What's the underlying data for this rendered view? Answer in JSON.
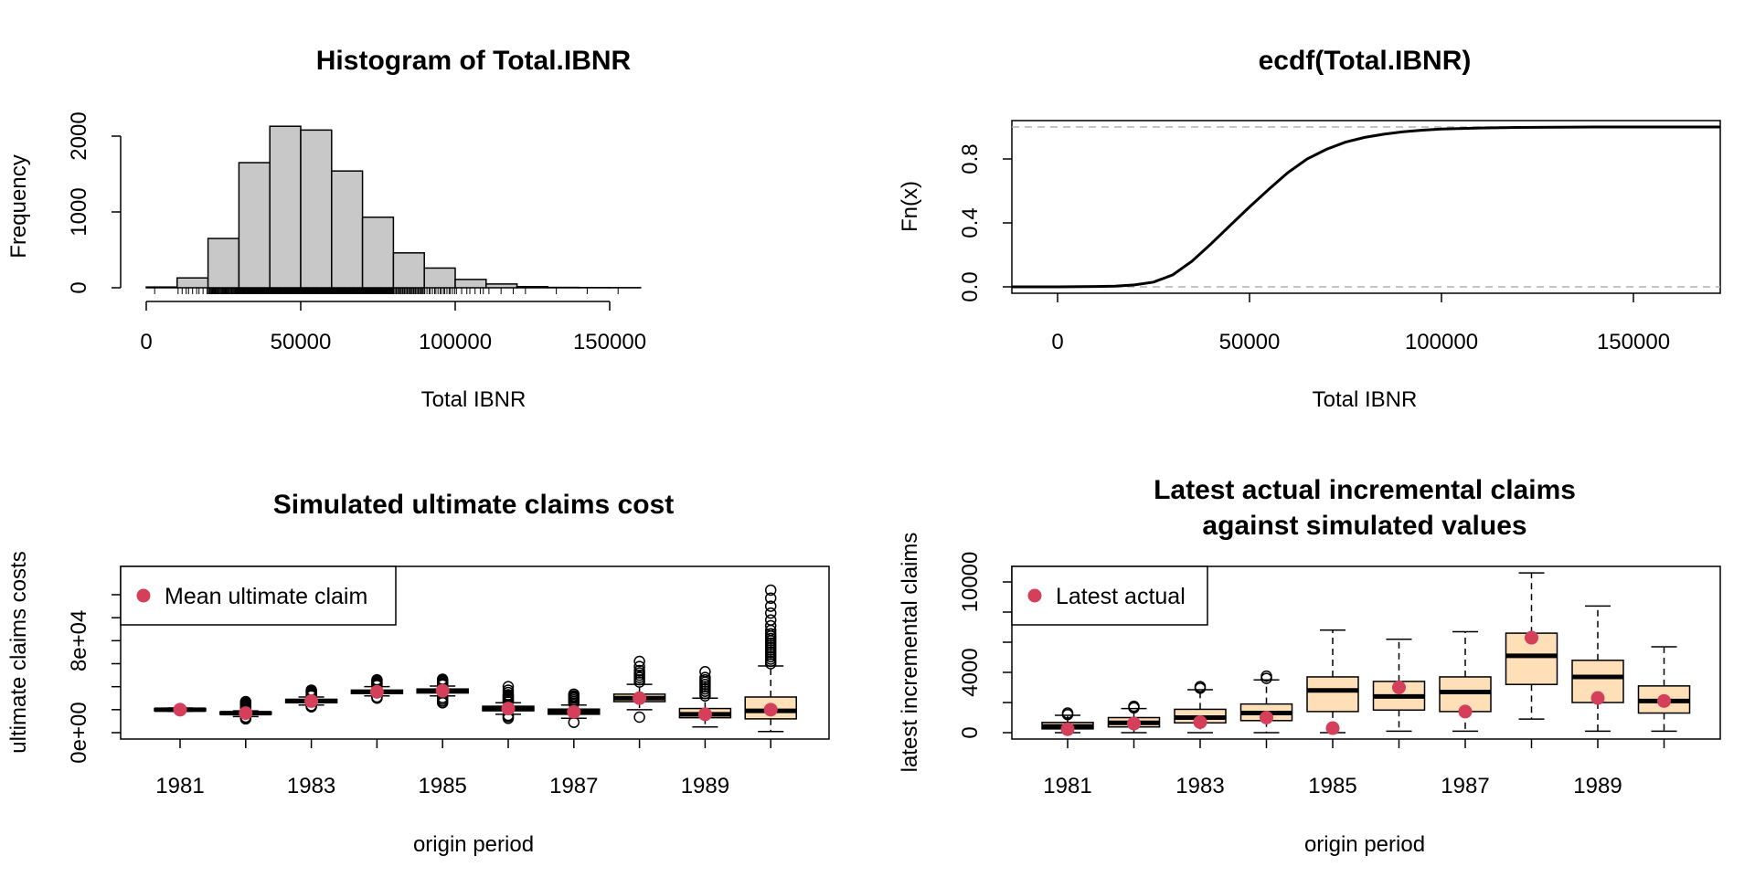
{
  "colors": {
    "hist_fill": "#c8c8c8",
    "box_fill": "#ffdfb8",
    "mean_point": "#d43f5a",
    "ecdf_guide": "#b0b0b0",
    "ink": "#000000"
  },
  "chart_data": [
    {
      "id": "histogram",
      "type": "bar",
      "title": "Histogram of Total.IBNR",
      "xlabel": "Total IBNR",
      "ylabel": "Frequency",
      "xlim": [
        0,
        160000
      ],
      "ylim": [
        0,
        2000
      ],
      "x_ticks": [
        "0",
        "50000",
        "100000",
        "150000"
      ],
      "y_ticks": [
        "0",
        "1000",
        "2000"
      ],
      "bin_width": 10000,
      "bins": [
        {
          "from": 0,
          "to": 10000,
          "count": 10
        },
        {
          "from": 10000,
          "to": 20000,
          "count": 130
        },
        {
          "from": 20000,
          "to": 30000,
          "count": 650
        },
        {
          "from": 30000,
          "to": 40000,
          "count": 1650
        },
        {
          "from": 40000,
          "to": 50000,
          "count": 2130
        },
        {
          "from": 50000,
          "to": 60000,
          "count": 2080
        },
        {
          "from": 60000,
          "to": 70000,
          "count": 1540
        },
        {
          "from": 70000,
          "to": 80000,
          "count": 930
        },
        {
          "from": 80000,
          "to": 90000,
          "count": 460
        },
        {
          "from": 90000,
          "to": 100000,
          "count": 260
        },
        {
          "from": 100000,
          "to": 110000,
          "count": 110
        },
        {
          "from": 110000,
          "to": 120000,
          "count": 50
        },
        {
          "from": 120000,
          "to": 130000,
          "count": 15
        },
        {
          "from": 130000,
          "to": 140000,
          "count": 5
        },
        {
          "from": 140000,
          "to": 150000,
          "count": 3
        },
        {
          "from": 150000,
          "to": 160000,
          "count": 2
        }
      ]
    },
    {
      "id": "ecdf",
      "type": "line",
      "title": "ecdf(Total.IBNR)",
      "xlabel": "Total IBNR",
      "ylabel": "Fn(x)",
      "xlim": [
        0,
        150000
      ],
      "ylim": [
        0,
        1
      ],
      "x_ticks": [
        "0",
        "50000",
        "100000",
        "150000"
      ],
      "y_ticks": [
        "0.0",
        "0.4",
        "0.8"
      ],
      "guides": [
        0,
        1
      ],
      "points": [
        [
          -12000,
          0
        ],
        [
          0,
          0
        ],
        [
          10000,
          0.002
        ],
        [
          15000,
          0.004
        ],
        [
          20000,
          0.012
        ],
        [
          25000,
          0.03
        ],
        [
          30000,
          0.075
        ],
        [
          35000,
          0.16
        ],
        [
          40000,
          0.27
        ],
        [
          45000,
          0.385
        ],
        [
          50000,
          0.5
        ],
        [
          55000,
          0.61
        ],
        [
          60000,
          0.715
        ],
        [
          65000,
          0.8
        ],
        [
          70000,
          0.86
        ],
        [
          75000,
          0.905
        ],
        [
          80000,
          0.935
        ],
        [
          85000,
          0.955
        ],
        [
          90000,
          0.97
        ],
        [
          95000,
          0.98
        ],
        [
          100000,
          0.987
        ],
        [
          110000,
          0.994
        ],
        [
          120000,
          0.997
        ],
        [
          130000,
          0.999
        ],
        [
          140000,
          1.0
        ],
        [
          175000,
          1.0
        ]
      ]
    },
    {
      "id": "ultimate",
      "type": "box",
      "title": "Simulated ultimate claims cost",
      "xlabel": "origin period",
      "ylabel": "ultimate claims costs",
      "categories": [
        "1981",
        "1982",
        "1983",
        "1984",
        "1985",
        "1986",
        "1987",
        "1988",
        "1989",
        "1990"
      ],
      "x_ticks": [
        "1981",
        "1983",
        "1985",
        "1987",
        "1989"
      ],
      "y_ticks": [
        "0e+00",
        "8e+04"
      ],
      "ylim": [
        0,
        130000
      ],
      "legend": {
        "label": "Mean ultimate claim",
        "position": "top-left"
      },
      "boxes": [
        {
          "q1": 19000,
          "median": 20000,
          "q3": 21000,
          "lo": 18500,
          "hi": 21500,
          "outliers": [],
          "mean": 20000
        },
        {
          "q1": 16000,
          "median": 17000,
          "q3": 18000,
          "lo": 14000,
          "hi": 19000,
          "outliers": [
            12000,
            13000,
            13500,
            19500,
            20500,
            21500,
            22500,
            23500,
            24500,
            25500,
            26500,
            27000
          ],
          "mean": 17000
        },
        {
          "q1": 26000,
          "median": 27500,
          "q3": 29000,
          "lo": 24000,
          "hi": 31000,
          "outliers": [
            22500,
            23500,
            32000,
            33000,
            34000,
            35000,
            36000,
            37000
          ],
          "mean": 27500
        },
        {
          "q1": 34000,
          "median": 35500,
          "q3": 37000,
          "lo": 32000,
          "hi": 40000,
          "outliers": [
            30000,
            31000,
            41000,
            42000,
            43000,
            44000,
            45000,
            46000
          ],
          "mean": 35500
        },
        {
          "q1": 34500,
          "median": 36500,
          "q3": 38000,
          "lo": 32000,
          "hi": 40500,
          "outliers": [
            26000,
            27500,
            29000,
            30500,
            41500,
            42500,
            43500,
            44500,
            45500,
            46500
          ],
          "mean": 36500
        },
        {
          "q1": 19000,
          "median": 21000,
          "q3": 23000,
          "lo": 16000,
          "hi": 26000,
          "outliers": [
            12500,
            14000,
            15000,
            27000,
            28000,
            29000,
            30000,
            31000,
            32000,
            33000,
            35000,
            37000,
            40000
          ],
          "mean": 21000
        },
        {
          "q1": 16000,
          "median": 18000,
          "q3": 20500,
          "lo": 12500,
          "hi": 24000,
          "outliers": [
            9000,
            25500,
            27000,
            28500,
            30000,
            31000,
            32000,
            33500
          ],
          "mean": 18000
        },
        {
          "q1": 27000,
          "median": 30000,
          "q3": 33500,
          "lo": 20000,
          "hi": 42000,
          "outliers": [
            13500,
            44000,
            46000,
            48000,
            50000,
            52000,
            54000,
            57500,
            62000
          ],
          "mean": 30000
        },
        {
          "q1": 13000,
          "median": 16000,
          "q3": 21000,
          "lo": 5000,
          "hi": 30000,
          "outliers": [
            32000,
            34000,
            36000,
            38000,
            40000,
            42000,
            44000,
            46000,
            48000,
            53000
          ],
          "mean": 16000
        },
        {
          "q1": 12000,
          "median": 19000,
          "q3": 31000,
          "lo": 1000,
          "hi": 58000,
          "outliers": [
            60000,
            62000,
            64000,
            66000,
            68000,
            70000,
            72000,
            74000,
            76000,
            78000,
            80000,
            82000,
            84000,
            86000,
            89000,
            93000,
            98000,
            104000,
            110000,
            117000,
            124000
          ],
          "mean": 20000
        }
      ]
    },
    {
      "id": "latest",
      "type": "box",
      "title": "Latest actual incremental claims",
      "title_line2": "against simulated values",
      "xlabel": "origin period",
      "ylabel": "latest incremental claims",
      "categories": [
        "1981",
        "1982",
        "1983",
        "1984",
        "1985",
        "1986",
        "1987",
        "1988",
        "1989",
        "1990"
      ],
      "x_ticks": [
        "1981",
        "1983",
        "1985",
        "1987",
        "1989"
      ],
      "y_ticks": [
        "0",
        "4000",
        "10000"
      ],
      "ylim": [
        -400,
        11000
      ],
      "legend": {
        "label": "Latest actual",
        "position": "top-left"
      },
      "boxes": [
        {
          "q1": 250,
          "median": 420,
          "q3": 680,
          "lo": 0,
          "hi": 1150,
          "outliers": [
            1200,
            1300
          ],
          "mean": 230
        },
        {
          "q1": 380,
          "median": 650,
          "q3": 1000,
          "lo": 0,
          "hi": 1600,
          "outliers": [
            1650,
            1750
          ],
          "mean": 600
        },
        {
          "q1": 650,
          "median": 1000,
          "q3": 1550,
          "lo": 0,
          "hi": 2850,
          "outliers": [
            2950,
            3050
          ],
          "mean": 700
        },
        {
          "q1": 800,
          "median": 1300,
          "q3": 1900,
          "lo": 0,
          "hi": 3500,
          "outliers": [
            3600,
            3750
          ],
          "mean": 1000
        },
        {
          "q1": 1400,
          "median": 2800,
          "q3": 3700,
          "lo": 0,
          "hi": 6800,
          "outliers": [],
          "mean": 300
        },
        {
          "q1": 1500,
          "median": 2400,
          "q3": 3400,
          "lo": 100,
          "hi": 6200,
          "outliers": [],
          "mean": 3000
        },
        {
          "q1": 1400,
          "median": 2700,
          "q3": 3700,
          "lo": 100,
          "hi": 6700,
          "outliers": [],
          "mean": 1400
        },
        {
          "q1": 3200,
          "median": 5100,
          "q3": 6600,
          "lo": 900,
          "hi": 10600,
          "outliers": [],
          "mean": 6300
        },
        {
          "q1": 2000,
          "median": 3700,
          "q3": 4800,
          "lo": 100,
          "hi": 8400,
          "outliers": [],
          "mean": 2300
        },
        {
          "q1": 1300,
          "median": 2100,
          "q3": 3100,
          "lo": 100,
          "hi": 5700,
          "outliers": [],
          "mean": 2100
        }
      ]
    }
  ]
}
